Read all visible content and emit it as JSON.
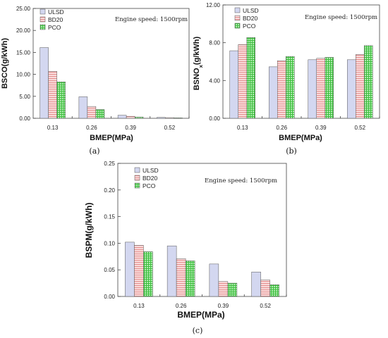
{
  "colors": {
    "ULSD": "#cfd3ee",
    "BD20": "#f2b2b2",
    "PCO": "#7dd67d"
  },
  "chart_data": [
    {
      "type": "bar",
      "panel_label": "(a)",
      "ylabel": "BSCO(g/kWh)",
      "xlabel": "BMEP(MPa)",
      "annotation": "Engine speed: 1500rpm",
      "categories": [
        "0.13",
        "0.26",
        "0.39",
        "0.52"
      ],
      "ylim": [
        0,
        25
      ],
      "yticks": [
        "0.00",
        "5.00",
        "10.00",
        "15.00",
        "20.00",
        "25.00"
      ],
      "legend_position": "top-left",
      "series": [
        {
          "name": "ULSD",
          "values": [
            16.1,
            4.9,
            0.7,
            0.2
          ]
        },
        {
          "name": "BD20",
          "values": [
            10.7,
            2.7,
            0.45,
            0.15
          ]
        },
        {
          "name": "PCO",
          "values": [
            8.3,
            2.0,
            0.3,
            0.1
          ]
        }
      ]
    },
    {
      "type": "bar",
      "panel_label": "(b)",
      "ylabel": "BSNOx(g/kWh)",
      "xlabel": "BMEP(MPa)",
      "annotation": "Engine speed: 1500rpm",
      "categories": [
        "0.13",
        "0.26",
        "0.39",
        "0.52"
      ],
      "ylim": [
        0,
        12
      ],
      "yticks": [
        "0.00",
        "4.00",
        "8.00",
        "12.00"
      ],
      "legend_position": "top-left",
      "series": [
        {
          "name": "ULSD",
          "values": [
            7.15,
            5.45,
            6.2,
            6.2
          ]
        },
        {
          "name": "BD20",
          "values": [
            7.8,
            6.1,
            6.35,
            6.75
          ]
        },
        {
          "name": "PCO",
          "values": [
            8.55,
            6.55,
            6.45,
            7.7
          ]
        }
      ]
    },
    {
      "type": "bar",
      "panel_label": "(c)",
      "ylabel": "BSPM(g/kWh)",
      "xlabel": "BMEP(MPa)",
      "annotation": "Engine speed: 1500rpm",
      "categories": [
        "0.13",
        "0.26",
        "0.39",
        "0.52"
      ],
      "ylim": [
        0,
        0.25
      ],
      "yticks": [
        "0.00",
        "0.05",
        "0.10",
        "0.15",
        "0.20",
        "0.25"
      ],
      "legend_position": "top-left",
      "series": [
        {
          "name": "ULSD",
          "values": [
            0.102,
            0.095,
            0.061,
            0.046
          ]
        },
        {
          "name": "BD20",
          "values": [
            0.096,
            0.071,
            0.028,
            0.031
          ]
        },
        {
          "name": "PCO",
          "values": [
            0.084,
            0.067,
            0.025,
            0.022
          ]
        }
      ]
    }
  ]
}
